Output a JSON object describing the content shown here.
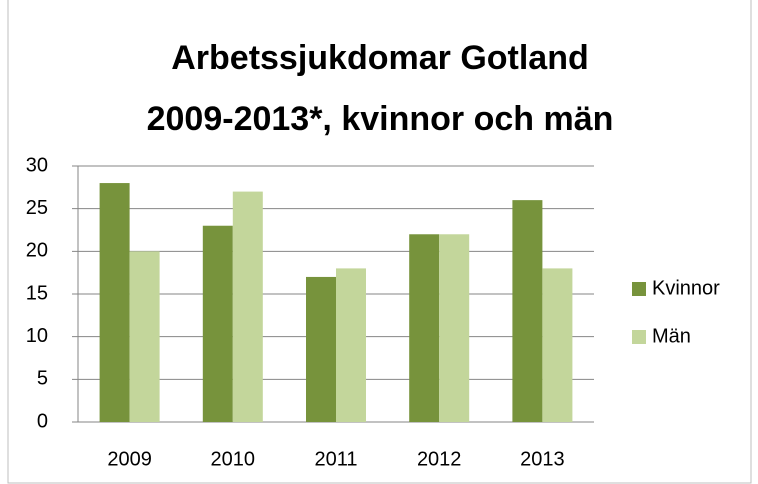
{
  "chart_data": {
    "type": "bar",
    "title": [
      "Arbetssjukdomar Gotland",
      "2009-2013*, kvinnor och män"
    ],
    "categories": [
      "2009",
      "2010",
      "2011",
      "2012",
      "2013"
    ],
    "series": [
      {
        "name": "Kvinnor",
        "color": "#77933c",
        "values": [
          28,
          23,
          17,
          22,
          26
        ]
      },
      {
        "name": "Män",
        "color": "#c3d69b",
        "values": [
          20,
          27,
          18,
          22,
          18
        ]
      }
    ],
    "ylim": [
      0,
      30
    ],
    "yticks": [
      0,
      5,
      10,
      15,
      20,
      25,
      30
    ],
    "grid": true,
    "legend": "right"
  }
}
